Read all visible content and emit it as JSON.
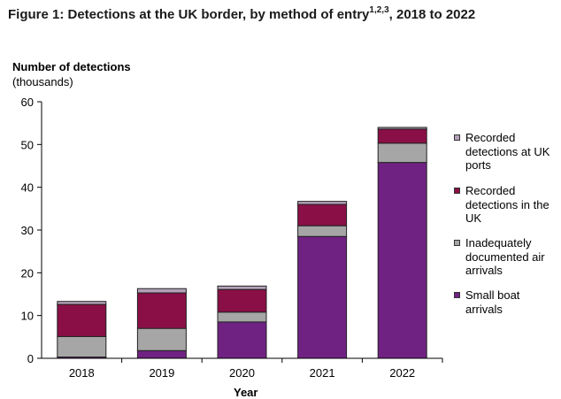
{
  "figure": {
    "title": "Figure 1: Detections at the UK border, by method of entry",
    "title_superscript": "1,2,3",
    "title_suffix": ", 2018 to 2022"
  },
  "chart_data": {
    "type": "bar",
    "stacked": true,
    "categories": [
      "2018",
      "2019",
      "2020",
      "2021",
      "2022"
    ],
    "series": [
      {
        "name": "Small boat arrivals",
        "color": "#702283",
        "values": [
          0.3,
          1.8,
          8.5,
          28.5,
          45.8
        ]
      },
      {
        "name": "Inadequately documented air arrivals",
        "color": "#a6a6a6",
        "values": [
          4.8,
          5.2,
          2.3,
          2.5,
          4.5
        ]
      },
      {
        "name": "Recorded detections in the UK",
        "color": "#8a0f46",
        "values": [
          7.5,
          8.3,
          5.3,
          5.0,
          3.3
        ]
      },
      {
        "name": "Recorded detections at UK ports",
        "color": "#b3a1b8",
        "values": [
          0.7,
          1.0,
          0.8,
          0.7,
          0.4
        ]
      }
    ],
    "ylim": [
      0,
      60
    ],
    "yticks": [
      0,
      10,
      20,
      30,
      40,
      50,
      60
    ],
    "ylabel": "Number of detections",
    "ylabel_sub": "(thousands)",
    "xlabel": "Year",
    "legend": {
      "placement": "right",
      "items": [
        {
          "label": "Recorded detections at UK ports",
          "color": "#b3a1b8"
        },
        {
          "label": "Recorded detections in the UK",
          "color": "#8a0f46"
        },
        {
          "label": "Inadequately documented air arrivals",
          "color": "#a6a6a6"
        },
        {
          "label": "Small boat arrivals",
          "color": "#702283"
        }
      ]
    }
  }
}
